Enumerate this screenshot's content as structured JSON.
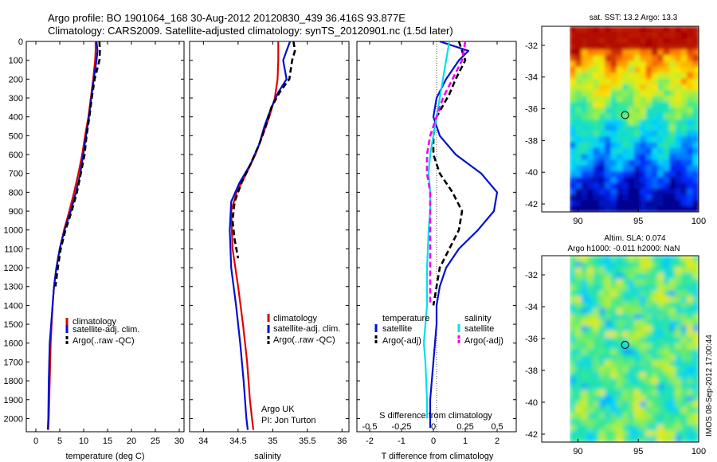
{
  "title_line1": "Argo profile: BO 1901064_168 30-Aug-2012 20120830_439 36.416S 93.877E",
  "title_line2": "Climatology: CARS2009. Satellite-adjusted climatology: synTS_20120901.nc (1.5d later)",
  "side_note": "IMOS 08-Sep-2012 17:00:44",
  "colors": {
    "climatology": "#e00000",
    "satellite": "#0010d0",
    "argo": "#000000",
    "sal_satellite": "#00e0f0",
    "sal_argo": "#f000f0"
  },
  "chart_data": [
    {
      "type": "line",
      "xlabel": "temperature (deg C)",
      "xlim": [
        -2,
        31
      ],
      "ylim": [
        2070,
        0
      ],
      "xticks": [
        0,
        5,
        10,
        15,
        20,
        25,
        30
      ],
      "yticks": [
        0,
        100,
        200,
        300,
        400,
        500,
        600,
        700,
        800,
        900,
        1000,
        1100,
        1200,
        1300,
        1400,
        1500,
        1600,
        1700,
        1800,
        1900,
        2000
      ],
      "legend": [
        "climatology",
        "satellite-adj. clim.",
        "Argo(..raw -QC)"
      ],
      "series": [
        {
          "name": "climatology",
          "color": "#e00000",
          "style": "solid",
          "x": [
            12.5,
            12.5,
            12.4,
            12.2,
            12.0,
            11.5,
            11.0,
            10.3,
            9.7,
            8.9,
            8.0,
            7.0,
            5.9,
            5.0,
            4.3,
            3.8,
            3.5,
            3.3,
            3.1,
            2.9,
            2.7,
            2.6
          ],
          "y": [
            0,
            50,
            100,
            150,
            200,
            300,
            400,
            500,
            600,
            700,
            800,
            900,
            1000,
            1100,
            1200,
            1300,
            1400,
            1500,
            1600,
            1800,
            2000,
            2060
          ]
        },
        {
          "name": "satellite-adj. clim.",
          "color": "#0010d0",
          "style": "solid",
          "x": [
            12.7,
            12.9,
            12.7,
            12.4,
            12.1,
            11.6,
            11.1,
            10.5,
            9.9,
            9.3,
            8.4,
            7.3,
            6.0,
            5.0,
            4.3,
            3.8,
            3.5,
            3.2,
            2.9,
            2.7,
            2.6,
            2.5
          ],
          "y": [
            0,
            50,
            100,
            150,
            200,
            300,
            400,
            500,
            600,
            700,
            800,
            900,
            1000,
            1100,
            1200,
            1300,
            1400,
            1500,
            1600,
            1800,
            2000,
            2060
          ]
        },
        {
          "name": "Argo(..raw -QC)",
          "color": "#000000",
          "style": "dash",
          "x": [
            13.3,
            13.4,
            13.3,
            12.8,
            12.3,
            11.7,
            11.2,
            10.6,
            10.2,
            9.4,
            8.6,
            7.5,
            6.2,
            5.2,
            4.6,
            4.1
          ],
          "y": [
            0,
            50,
            100,
            150,
            200,
            300,
            400,
            500,
            600,
            700,
            800,
            900,
            1000,
            1100,
            1200,
            1300
          ]
        }
      ]
    },
    {
      "type": "line",
      "xlabel": "salinity",
      "xlim": [
        33.8,
        36.1
      ],
      "ylim": [
        2070,
        0
      ],
      "xticks": [
        34,
        34.5,
        35,
        35.5,
        36
      ],
      "legend": [
        "climatology",
        "satellite-adj. clim.",
        "Argo(..raw -QC)"
      ],
      "annotations": [
        "Argo UK",
        "PI: Jon Turton"
      ],
      "series": [
        {
          "name": "climatology",
          "color": "#e00000",
          "style": "solid",
          "x": [
            35.08,
            35.08,
            35.07,
            35.03,
            34.95,
            34.85,
            34.75,
            34.62,
            34.48,
            34.4,
            34.42,
            34.5,
            34.57,
            34.63,
            34.67,
            34.7,
            34.72
          ],
          "y": [
            0,
            100,
            200,
            300,
            400,
            500,
            600,
            700,
            800,
            900,
            1100,
            1300,
            1500,
            1700,
            1900,
            2000,
            2060
          ]
        },
        {
          "name": "satellite-adj. clim.",
          "color": "#0010d0",
          "style": "solid",
          "x": [
            35.25,
            35.2,
            35.15,
            35.2,
            35.08,
            34.98,
            34.88,
            34.8,
            34.68,
            34.52,
            34.4,
            34.38,
            34.4,
            34.47,
            34.53,
            34.58,
            34.62,
            34.64
          ],
          "y": [
            0,
            50,
            100,
            200,
            270,
            350,
            450,
            550,
            650,
            750,
            850,
            1000,
            1200,
            1400,
            1600,
            1800,
            2000,
            2060
          ]
        },
        {
          "name": "Argo(..raw -QC)",
          "color": "#000000",
          "style": "dash",
          "x": [
            35.3,
            35.32,
            35.28,
            35.24,
            35.1,
            34.98,
            34.9,
            34.8,
            34.68,
            34.55,
            34.45,
            34.42,
            34.45,
            34.5
          ],
          "y": [
            0,
            50,
            100,
            200,
            270,
            350,
            450,
            550,
            650,
            750,
            850,
            950,
            1050,
            1150
          ]
        }
      ]
    },
    {
      "type": "line",
      "xlabel": "T difference from climatology",
      "xlabel2": "S difference from climatology",
      "xlim": [
        -2.4,
        2.6
      ],
      "ylim": [
        2070,
        0
      ],
      "xticks": [
        -2,
        -1,
        0,
        1,
        2
      ],
      "xticks2": [
        "-0.5",
        "-0.25",
        "0",
        "0.25",
        "0.5"
      ],
      "legend_groups": [
        {
          "heading": "temperature",
          "items": [
            "satellite",
            "Argo(-adj)"
          ]
        },
        {
          "heading": "salinity",
          "items": [
            "satellite",
            "Argo(-adj)"
          ]
        }
      ],
      "series": [
        {
          "name": "satellite",
          "color": "#0010d0",
          "style": "solid",
          "x": [
            0.2,
            1.1,
            0.8,
            0.6,
            0.4,
            0.1,
            0.0,
            0.2,
            0.7,
            1.5,
            2.0,
            1.9,
            1.4,
            0.8,
            0.4,
            0.2,
            0.1,
            0.1,
            0.0,
            -0.1,
            -0.1
          ],
          "y": [
            0,
            50,
            100,
            150,
            200,
            300,
            400,
            500,
            600,
            700,
            800,
            900,
            1000,
            1100,
            1200,
            1300,
            1400,
            1500,
            1700,
            1900,
            2050
          ]
        },
        {
          "name": "Argo(-adj)",
          "color": "#000000",
          "style": "dash",
          "x": [
            0.8,
            1.0,
            0.7,
            0.5,
            0.1,
            0.0,
            0.0,
            0.2,
            0.6,
            0.9,
            0.8,
            0.5,
            0.2,
            0.1,
            0.0
          ],
          "y": [
            0,
            100,
            200,
            280,
            400,
            500,
            600,
            700,
            800,
            900,
            1000,
            1100,
            1200,
            1300,
            1400
          ]
        },
        {
          "name": "satellite",
          "color": "#00e0f0",
          "style": "solid",
          "x": [
            0.5,
            0.4,
            0.3,
            0.2,
            0.1,
            0.0,
            -0.1,
            -0.15,
            -0.1,
            -0.1,
            -0.15,
            -0.2,
            -0.2,
            -0.25,
            -0.3,
            -0.25,
            -0.2,
            -0.2
          ],
          "y": [
            0,
            100,
            200,
            300,
            400,
            500,
            600,
            700,
            800,
            900,
            1000,
            1200,
            1400,
            1500,
            1600,
            1700,
            1900,
            2000
          ]
        },
        {
          "name": "Argo(-adj)",
          "color": "#f000f0",
          "style": "dash",
          "x": [
            1.0,
            0.9,
            0.6,
            0.3,
            0.1,
            -0.1,
            -0.2,
            -0.2,
            -0.1,
            -0.1,
            -0.1,
            -0.1
          ],
          "y": [
            0,
            100,
            200,
            300,
            400,
            500,
            600,
            700,
            800,
            1000,
            1200,
            1400
          ]
        }
      ]
    },
    {
      "type": "heatmap",
      "title": "sat. SST: 13.2  Argo: 13.3",
      "xticks": [
        90,
        95,
        100
      ],
      "yticks": [
        -32,
        -34,
        -36,
        -38,
        -40,
        -42
      ],
      "xlim": [
        87,
        100
      ],
      "ylim": [
        -42.5,
        -30.8
      ],
      "marker": {
        "lon": 93.9,
        "lat": -36.4
      }
    },
    {
      "type": "heatmap",
      "title": "Altim. SLA: 0.074",
      "subtitle": "Argo h1000: -0.011  h2000: NaN",
      "xticks": [
        90,
        95,
        100
      ],
      "yticks": [
        -32,
        -34,
        -36,
        -38,
        -40,
        -42
      ],
      "xlim": [
        87,
        100
      ],
      "ylim": [
        -42.5,
        -30.8
      ],
      "marker": {
        "lon": 93.9,
        "lat": -36.4
      }
    }
  ]
}
